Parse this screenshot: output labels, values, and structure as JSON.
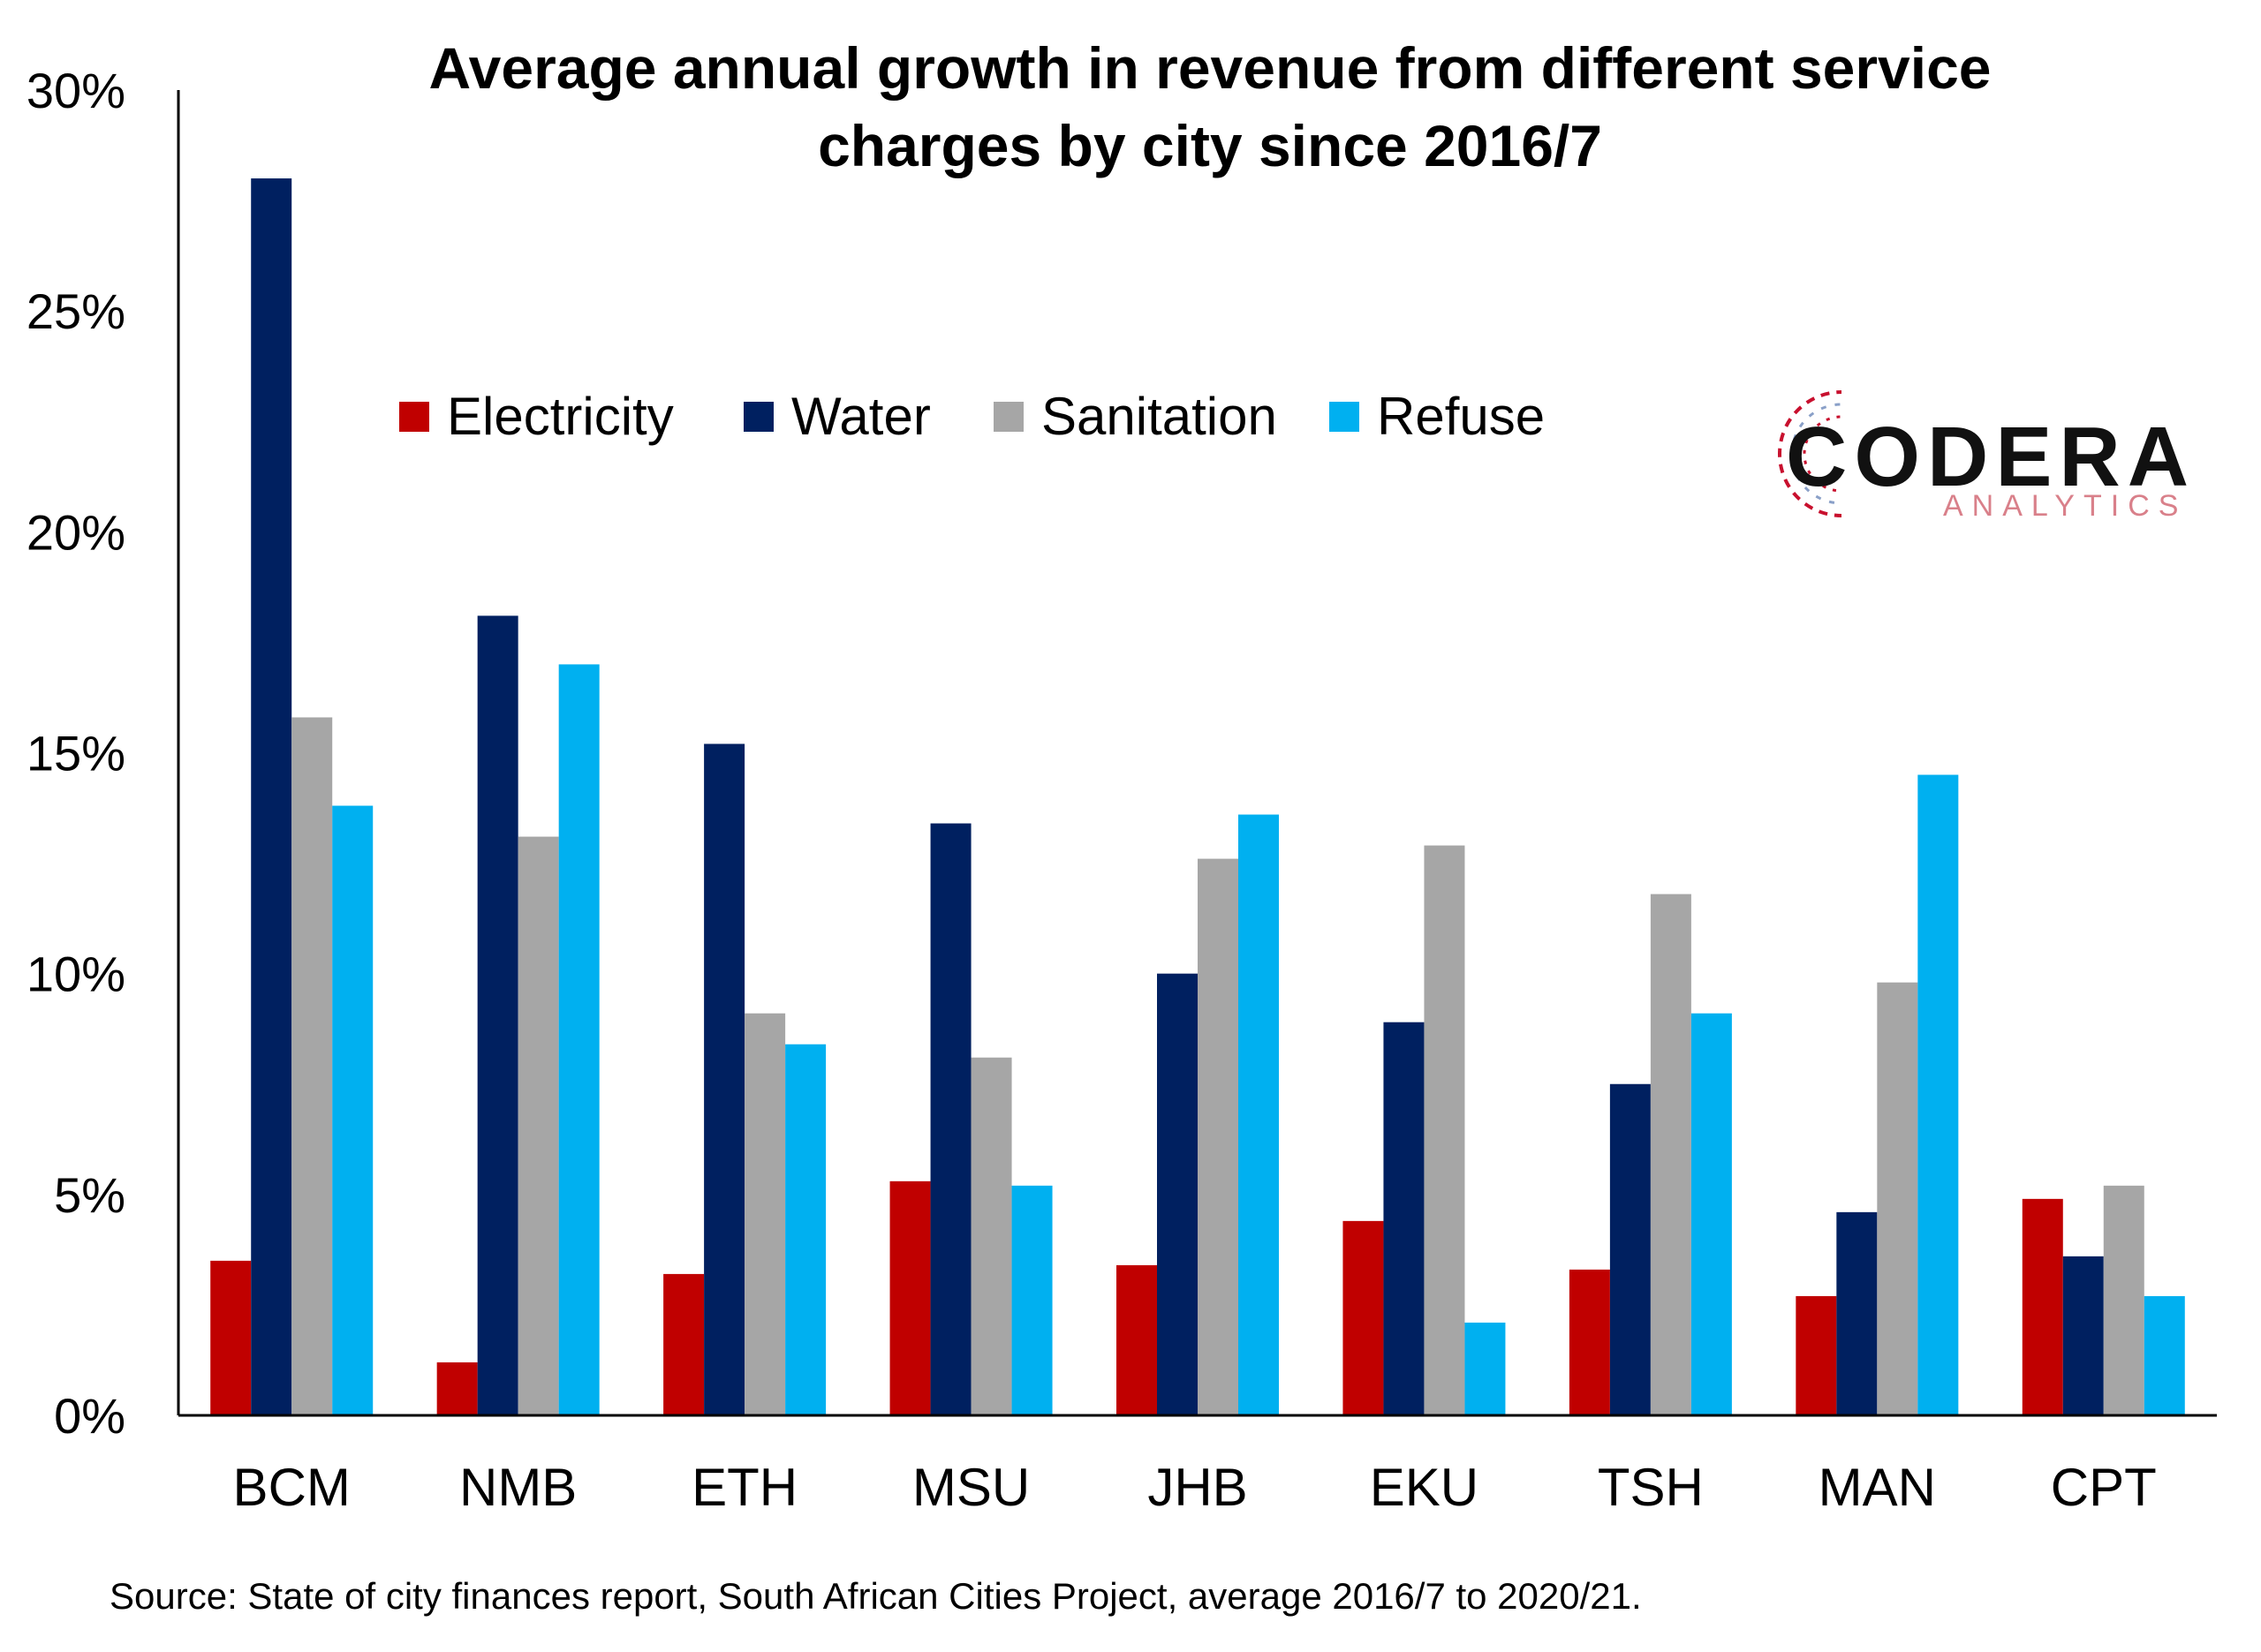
{
  "chart_data": {
    "type": "bar",
    "title_line1": "Average annual growth in revenue from different service",
    "title_line2": "charges by city since 2016/7",
    "categories": [
      "BCM",
      "NMB",
      "ETH",
      "MSU",
      "JHB",
      "EKU",
      "TSH",
      "MAN",
      "CPT"
    ],
    "series": [
      {
        "name": "Electricity",
        "color": "#c00000",
        "values": [
          3.5,
          1.2,
          3.2,
          5.3,
          3.4,
          4.4,
          3.3,
          2.7,
          4.9
        ]
      },
      {
        "name": "Water",
        "color": "#002060",
        "values": [
          28.0,
          18.1,
          15.2,
          13.4,
          10.0,
          8.9,
          7.5,
          4.6,
          3.6
        ]
      },
      {
        "name": "Sanitation",
        "color": "#a6a6a6",
        "values": [
          15.8,
          13.1,
          9.1,
          8.1,
          12.6,
          12.9,
          11.8,
          9.8,
          5.2
        ]
      },
      {
        "name": "Refuse",
        "color": "#00b0f0",
        "values": [
          13.8,
          17.0,
          8.4,
          5.2,
          13.6,
          2.1,
          9.1,
          14.5,
          2.7
        ]
      }
    ],
    "ylim": [
      0,
      30
    ],
    "yticks": [
      "0%",
      "5%",
      "10%",
      "15%",
      "20%",
      "25%",
      "30%"
    ],
    "legend_position": "top-center",
    "grid": false
  },
  "source": "Source: State of city finances report, South African Cities Project, average 2016/7 to 2020/21.",
  "logo": {
    "main": "CODERA",
    "sub": "ANALYTICS"
  }
}
